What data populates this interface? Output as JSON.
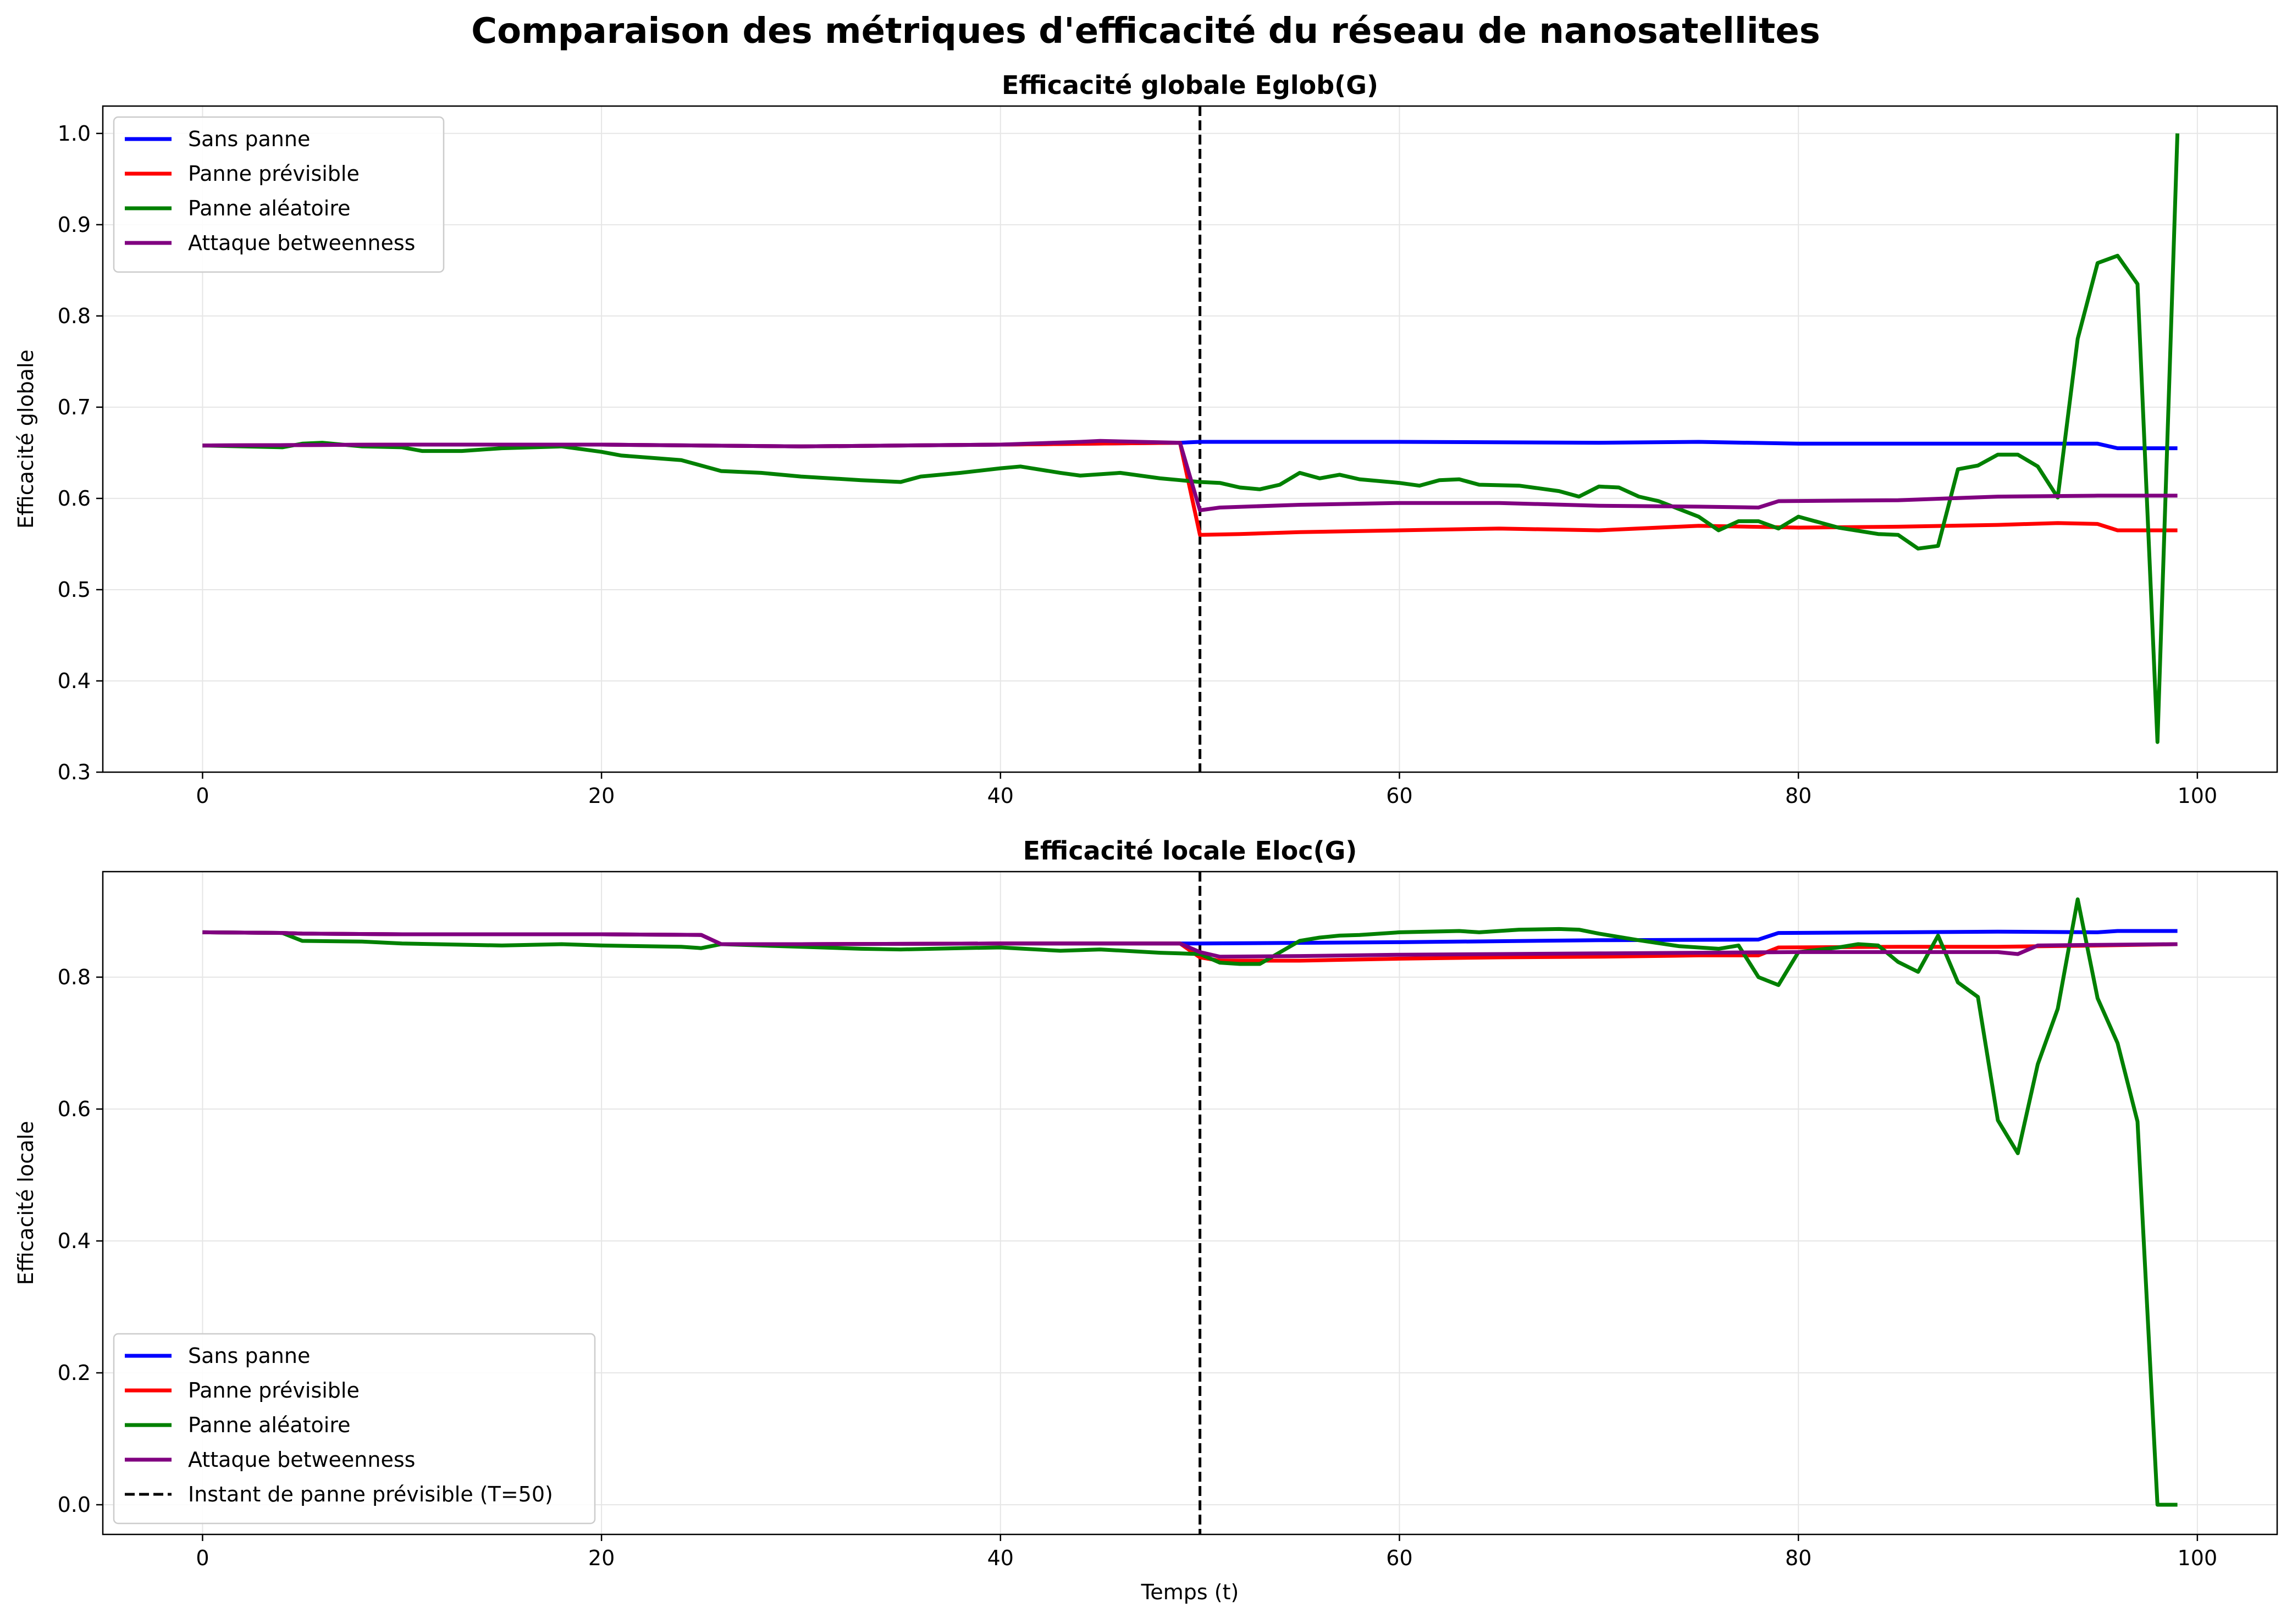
{
  "figure": {
    "suptitle": "Comparaison des métriques d'efficacité du réseau de nanosatellites"
  },
  "colors": {
    "Sans panne": "#0000ff",
    "Panne prévisible": "#ff0000",
    "Panne aléatoire": "#008000",
    "Attaque betweenness": "#800080",
    "event_line": "#000000",
    "grid": "#e6e6e6"
  },
  "chart_data": [
    {
      "type": "line",
      "title": "Efficacité globale Eglob(G)",
      "xlabel": "",
      "ylabel": "Efficacité globale",
      "xlim": [
        -5,
        104
      ],
      "ylim": [
        0.3,
        1.03
      ],
      "xticks": [
        0,
        20,
        40,
        60,
        80,
        100
      ],
      "yticks": [
        0.3,
        0.4,
        0.5,
        0.6,
        0.7,
        0.8,
        0.9,
        1.0
      ],
      "ytick_labels": [
        "0.3",
        "0.4",
        "0.5",
        "0.6",
        "0.7",
        "0.8",
        "0.9",
        "1.0"
      ],
      "grid": true,
      "legend_position": "upper-left",
      "event_line": {
        "x": 50,
        "style": "dashed"
      },
      "series": [
        {
          "name": "Sans panne",
          "x": [
            0,
            10,
            20,
            30,
            40,
            49,
            50,
            60,
            70,
            75,
            80,
            90,
            95,
            96,
            99
          ],
          "y": [
            0.658,
            0.659,
            0.659,
            0.657,
            0.659,
            0.661,
            0.662,
            0.662,
            0.661,
            0.662,
            0.66,
            0.66,
            0.66,
            0.655,
            0.655
          ]
        },
        {
          "name": "Panne prévisible",
          "x": [
            0,
            10,
            20,
            30,
            40,
            49,
            50,
            52,
            55,
            60,
            65,
            70,
            75,
            80,
            85,
            90,
            93,
            95,
            96,
            97,
            99
          ],
          "y": [
            0.658,
            0.659,
            0.659,
            0.657,
            0.659,
            0.661,
            0.56,
            0.561,
            0.563,
            0.565,
            0.567,
            0.565,
            0.57,
            0.568,
            0.569,
            0.571,
            0.573,
            0.572,
            0.565,
            0.565,
            0.565
          ]
        },
        {
          "name": "Panne aléatoire",
          "x": [
            0,
            2,
            4,
            5,
            6,
            8,
            10,
            11,
            13,
            15,
            18,
            20,
            21,
            24,
            26,
            28,
            30,
            33,
            35,
            36,
            38,
            40,
            41,
            43,
            44,
            46,
            48,
            49,
            50,
            51,
            52,
            53,
            54,
            55,
            56,
            57,
            58,
            60,
            61,
            62,
            63,
            64,
            66,
            68,
            69,
            70,
            71,
            72,
            73,
            75,
            76,
            77,
            78,
            79,
            80,
            82,
            84,
            85,
            86,
            87,
            88,
            89,
            90,
            91,
            92,
            93,
            94,
            95,
            96,
            97,
            98,
            99
          ],
          "y": [
            0.658,
            0.657,
            0.656,
            0.66,
            0.661,
            0.657,
            0.656,
            0.652,
            0.652,
            0.655,
            0.657,
            0.651,
            0.647,
            0.642,
            0.63,
            0.628,
            0.624,
            0.62,
            0.618,
            0.624,
            0.628,
            0.633,
            0.635,
            0.628,
            0.625,
            0.628,
            0.622,
            0.62,
            0.618,
            0.617,
            0.612,
            0.61,
            0.615,
            0.628,
            0.622,
            0.626,
            0.621,
            0.617,
            0.614,
            0.62,
            0.621,
            0.615,
            0.614,
            0.608,
            0.602,
            0.613,
            0.612,
            0.602,
            0.597,
            0.58,
            0.565,
            0.575,
            0.575,
            0.567,
            0.58,
            0.568,
            0.561,
            0.56,
            0.545,
            0.548,
            0.632,
            0.636,
            0.648,
            0.648,
            0.635,
            0.601,
            0.775,
            0.858,
            0.866,
            0.835,
            0.333,
            1.0
          ]
        },
        {
          "name": "Attaque betweenness",
          "x": [
            0,
            10,
            20,
            30,
            40,
            44,
            45,
            49,
            50,
            51,
            55,
            60,
            65,
            70,
            75,
            78,
            79,
            85,
            90,
            95,
            99
          ],
          "y": [
            0.658,
            0.659,
            0.659,
            0.657,
            0.659,
            0.662,
            0.663,
            0.661,
            0.587,
            0.59,
            0.593,
            0.595,
            0.595,
            0.592,
            0.591,
            0.59,
            0.597,
            0.598,
            0.602,
            0.603,
            0.603
          ]
        }
      ]
    },
    {
      "type": "line",
      "title": "Efficacité locale Eloc(G)",
      "xlabel": "Temps (t)",
      "ylabel": "Efficacité locale",
      "xlim": [
        -5,
        104
      ],
      "ylim": [
        -0.045,
        0.96
      ],
      "xticks": [
        0,
        20,
        40,
        60,
        80,
        100
      ],
      "yticks": [
        0.0,
        0.2,
        0.4,
        0.6,
        0.8
      ],
      "ytick_labels": [
        "0.0",
        "0.2",
        "0.4",
        "0.6",
        "0.8"
      ],
      "grid": true,
      "legend_position": "lower-left",
      "event_line": {
        "x": 50,
        "style": "dashed",
        "label": "Instant de panne prévisible (T=50)"
      },
      "series": [
        {
          "name": "Sans panne",
          "x": [
            0,
            4,
            5,
            10,
            20,
            25,
            26,
            30,
            40,
            49,
            50,
            60,
            70,
            78,
            79,
            85,
            90,
            95,
            96,
            99
          ],
          "y": [
            0.868,
            0.867,
            0.866,
            0.865,
            0.865,
            0.864,
            0.85,
            0.85,
            0.851,
            0.851,
            0.851,
            0.853,
            0.856,
            0.857,
            0.867,
            0.868,
            0.869,
            0.868,
            0.87,
            0.87
          ]
        },
        {
          "name": "Panne prévisible",
          "x": [
            0,
            4,
            5,
            10,
            20,
            25,
            26,
            30,
            40,
            49,
            50,
            51,
            55,
            60,
            65,
            70,
            75,
            78,
            79,
            85,
            90,
            95,
            99
          ],
          "y": [
            0.868,
            0.867,
            0.866,
            0.865,
            0.865,
            0.864,
            0.85,
            0.85,
            0.851,
            0.851,
            0.83,
            0.825,
            0.825,
            0.828,
            0.83,
            0.831,
            0.833,
            0.833,
            0.845,
            0.846,
            0.846,
            0.848,
            0.85
          ]
        },
        {
          "name": "Panne aléatoire",
          "x": [
            0,
            4,
            5,
            8,
            10,
            15,
            18,
            20,
            24,
            25,
            26,
            28,
            30,
            33,
            35,
            38,
            40,
            43,
            45,
            48,
            49,
            50,
            51,
            52,
            53,
            55,
            56,
            57,
            58,
            60,
            63,
            64,
            66,
            68,
            69,
            70,
            72,
            74,
            76,
            77,
            78,
            79,
            80,
            82,
            83,
            84,
            85,
            86,
            87,
            88,
            89,
            90,
            91,
            92,
            93,
            94,
            95,
            96,
            97,
            98,
            99
          ],
          "y": [
            0.868,
            0.867,
            0.855,
            0.854,
            0.851,
            0.848,
            0.85,
            0.848,
            0.846,
            0.844,
            0.85,
            0.848,
            0.846,
            0.843,
            0.842,
            0.844,
            0.845,
            0.84,
            0.842,
            0.837,
            0.836,
            0.835,
            0.822,
            0.82,
            0.82,
            0.855,
            0.86,
            0.863,
            0.864,
            0.868,
            0.87,
            0.868,
            0.872,
            0.873,
            0.872,
            0.866,
            0.856,
            0.847,
            0.843,
            0.848,
            0.8,
            0.788,
            0.838,
            0.845,
            0.85,
            0.848,
            0.823,
            0.808,
            0.863,
            0.792,
            0.77,
            0.583,
            0.533,
            0.668,
            0.752,
            0.918,
            0.768,
            0.7,
            0.581,
            0.0,
            0.0
          ]
        },
        {
          "name": "Attaque betweenness",
          "x": [
            0,
            4,
            5,
            10,
            20,
            25,
            26,
            30,
            40,
            49,
            50,
            51,
            55,
            60,
            65,
            70,
            75,
            80,
            85,
            90,
            91,
            92,
            95,
            99
          ],
          "y": [
            0.868,
            0.867,
            0.866,
            0.865,
            0.865,
            0.864,
            0.85,
            0.85,
            0.851,
            0.851,
            0.838,
            0.831,
            0.832,
            0.834,
            0.835,
            0.836,
            0.837,
            0.838,
            0.838,
            0.838,
            0.835,
            0.848,
            0.849,
            0.85
          ]
        }
      ]
    }
  ]
}
